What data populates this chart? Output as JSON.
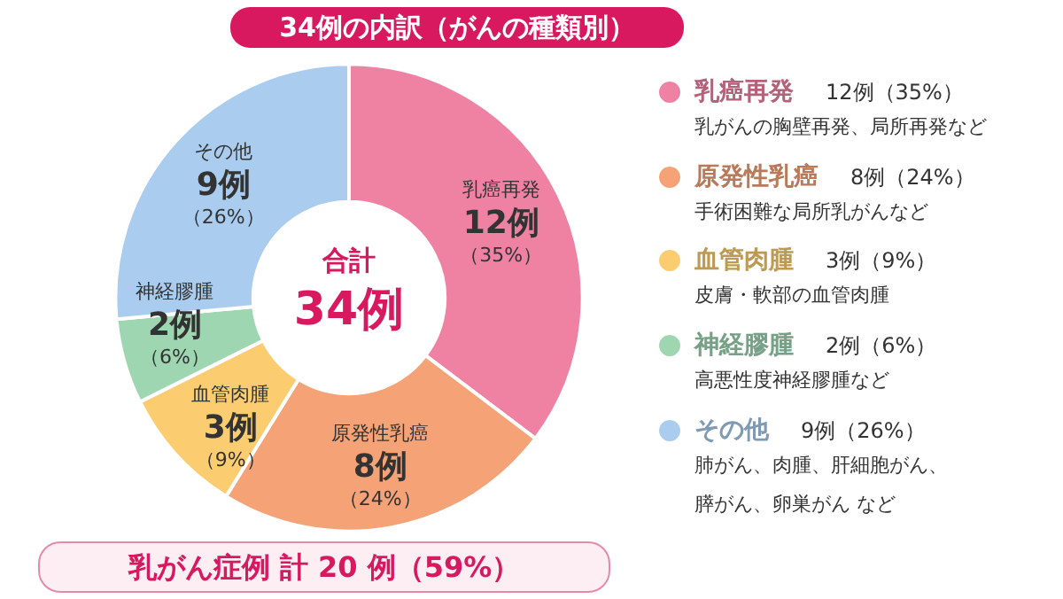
{
  "chart_data": {
    "type": "donut",
    "title": "34例の内訳（がんの種類別）",
    "categories": [
      "乳癌再発",
      "原発性乳癌",
      "血管肉腫",
      "神経膠腫",
      "その他"
    ],
    "values": [
      12,
      8,
      3,
      2,
      9
    ],
    "colors": [
      "#ef82a3",
      "#f5a276",
      "#fccd70",
      "#9fd6b2",
      "#aacdef"
    ],
    "value_labels": [
      "12例（35%）",
      "8例（24%）",
      "3例（9%）",
      "2例（6%）",
      "9例（26%）"
    ],
    "legend": "right",
    "annotations": [
      "合計",
      "34例",
      "乳がん症例 計 20 例（59%）",
      "乳がんの胸壁再発、局所再発など",
      "手術困難な局所乳がんなど",
      "皮膚・軟部の血管肉腫",
      "高悪性度神経膠腫など",
      "肺がん、肉腫、肝細胞がん、",
      "膵がん、卵巣がん など"
    ]
  }
}
